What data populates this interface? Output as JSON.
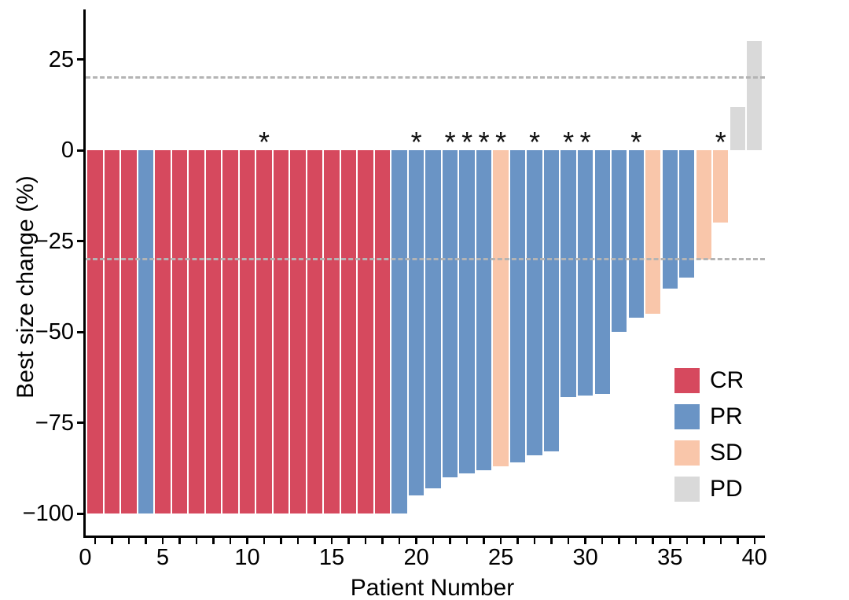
{
  "chart_data": {
    "type": "bar",
    "subtype": "waterfall",
    "title": "",
    "xlabel": "Patient Number",
    "ylabel": "Best size change (%)",
    "grid": false,
    "legend_position": "inside-right",
    "x_axis": {
      "range": [
        0.4,
        40.6
      ],
      "tick_values": [
        0,
        5,
        10,
        15,
        20,
        25,
        30,
        35,
        40
      ],
      "tick_labels": [
        "0",
        "5",
        "10",
        "15",
        "20",
        "25",
        "30",
        "35",
        "40"
      ],
      "minor_ticks_every": 1
    },
    "y_axis": {
      "range": [
        -107,
        39
      ],
      "tick_values": [
        25,
        0,
        -25,
        -50,
        -75,
        -100
      ],
      "tick_labels": [
        "25",
        "0",
        "−25",
        "−50",
        "−75",
        "−100"
      ]
    },
    "reference_lines": [
      {
        "y": 20,
        "style": "dashed",
        "color": "#b4b4b4"
      },
      {
        "y": -30,
        "style": "dashed",
        "color": "#b4b4b4"
      }
    ],
    "response_colors": {
      "CR": "#d6495e",
      "PR": "#6a94c5",
      "SD": "#f9c6aa",
      "PD": "#d9d9d9"
    },
    "legend": [
      {
        "label": "CR",
        "color": "#d6495e"
      },
      {
        "label": "PR",
        "color": "#6a94c5"
      },
      {
        "label": "SD",
        "color": "#f9c6aa"
      },
      {
        "label": "PD",
        "color": "#d9d9d9"
      }
    ],
    "starred_patients": [
      11,
      20,
      22,
      23,
      24,
      25,
      27,
      29,
      30,
      33,
      38
    ],
    "annotation_symbol": "*",
    "patients": [
      {
        "id": 1,
        "change": -100,
        "response": "CR",
        "star": false
      },
      {
        "id": 2,
        "change": -100,
        "response": "CR",
        "star": false
      },
      {
        "id": 3,
        "change": -100,
        "response": "CR",
        "star": false
      },
      {
        "id": 4,
        "change": -100,
        "response": "PR",
        "star": false
      },
      {
        "id": 5,
        "change": -100,
        "response": "CR",
        "star": false
      },
      {
        "id": 6,
        "change": -100,
        "response": "CR",
        "star": false
      },
      {
        "id": 7,
        "change": -100,
        "response": "CR",
        "star": false
      },
      {
        "id": 8,
        "change": -100,
        "response": "CR",
        "star": false
      },
      {
        "id": 9,
        "change": -100,
        "response": "CR",
        "star": false
      },
      {
        "id": 10,
        "change": -100,
        "response": "CR",
        "star": false
      },
      {
        "id": 11,
        "change": -100,
        "response": "CR",
        "star": true
      },
      {
        "id": 12,
        "change": -100,
        "response": "CR",
        "star": false
      },
      {
        "id": 13,
        "change": -100,
        "response": "CR",
        "star": false
      },
      {
        "id": 14,
        "change": -100,
        "response": "CR",
        "star": false
      },
      {
        "id": 15,
        "change": -100,
        "response": "CR",
        "star": false
      },
      {
        "id": 16,
        "change": -100,
        "response": "CR",
        "star": false
      },
      {
        "id": 17,
        "change": -100,
        "response": "CR",
        "star": false
      },
      {
        "id": 18,
        "change": -100,
        "response": "CR",
        "star": false
      },
      {
        "id": 19,
        "change": -100,
        "response": "PR",
        "star": false
      },
      {
        "id": 20,
        "change": -95,
        "response": "PR",
        "star": true
      },
      {
        "id": 21,
        "change": -93,
        "response": "PR",
        "star": false
      },
      {
        "id": 22,
        "change": -90,
        "response": "PR",
        "star": true
      },
      {
        "id": 23,
        "change": -89,
        "response": "PR",
        "star": true
      },
      {
        "id": 24,
        "change": -88,
        "response": "PR",
        "star": true
      },
      {
        "id": 25,
        "change": -87,
        "response": "SD",
        "star": true
      },
      {
        "id": 26,
        "change": -86,
        "response": "PR",
        "star": false
      },
      {
        "id": 27,
        "change": -84,
        "response": "PR",
        "star": true
      },
      {
        "id": 28,
        "change": -83,
        "response": "PR",
        "star": false
      },
      {
        "id": 29,
        "change": -68,
        "response": "PR",
        "star": true
      },
      {
        "id": 30,
        "change": -67.5,
        "response": "PR",
        "star": true
      },
      {
        "id": 31,
        "change": -67,
        "response": "PR",
        "star": false
      },
      {
        "id": 32,
        "change": -50,
        "response": "PR",
        "star": false
      },
      {
        "id": 33,
        "change": -46,
        "response": "PR",
        "star": true
      },
      {
        "id": 34,
        "change": -45,
        "response": "SD",
        "star": false
      },
      {
        "id": 35,
        "change": -38,
        "response": "PR",
        "star": false
      },
      {
        "id": 36,
        "change": -35,
        "response": "PR",
        "star": false
      },
      {
        "id": 37,
        "change": -30,
        "response": "SD",
        "star": false
      },
      {
        "id": 38,
        "change": -20,
        "response": "SD",
        "star": true
      },
      {
        "id": 39,
        "change": 12,
        "response": "PD",
        "star": false
      },
      {
        "id": 40,
        "change": 30,
        "response": "PD",
        "star": false
      }
    ]
  }
}
